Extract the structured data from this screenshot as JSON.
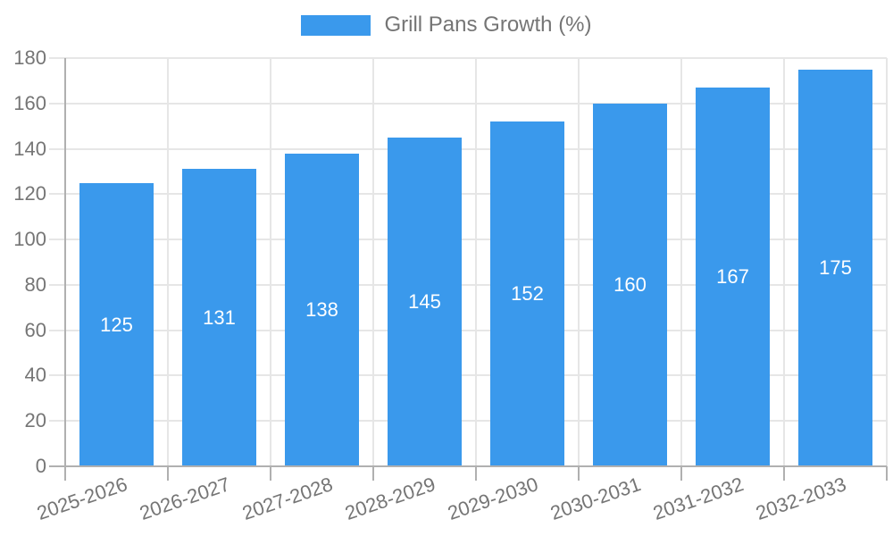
{
  "legend": {
    "label": "Grill Pans Growth (%)"
  },
  "chart_data": {
    "type": "bar",
    "title": "Grill Pans Growth (%)",
    "categories": [
      "2025-2026",
      "2026-2027",
      "2027-2028",
      "2028-2029",
      "2029-2030",
      "2030-2031",
      "2031-2032",
      "2032-2033"
    ],
    "series": [
      {
        "name": "Grill Pans Growth (%)",
        "values": [
          125,
          131,
          138,
          145,
          152,
          160,
          167,
          175
        ]
      }
    ],
    "bar_value_labels": [
      "125",
      "131",
      "138",
      "145",
      "152",
      "160",
      "167",
      "175"
    ],
    "xlabel": "",
    "ylabel": "",
    "ylim": [
      0,
      180
    ],
    "ytick_step": 20,
    "ytick_labels": [
      "0",
      "20",
      "40",
      "60",
      "80",
      "100",
      "120",
      "140",
      "160",
      "180"
    ],
    "grid": true,
    "legend_position": "top-center",
    "x_label_rotation_deg": -19
  },
  "colors": {
    "bar": "#3A99EC",
    "bar_value_text": "#FFFFFF",
    "axis_text": "#757575",
    "legend_text": "#757575",
    "gridline": "#E6E6E6",
    "axis_line": "#B0B0B0",
    "background": "#FFFFFF"
  }
}
